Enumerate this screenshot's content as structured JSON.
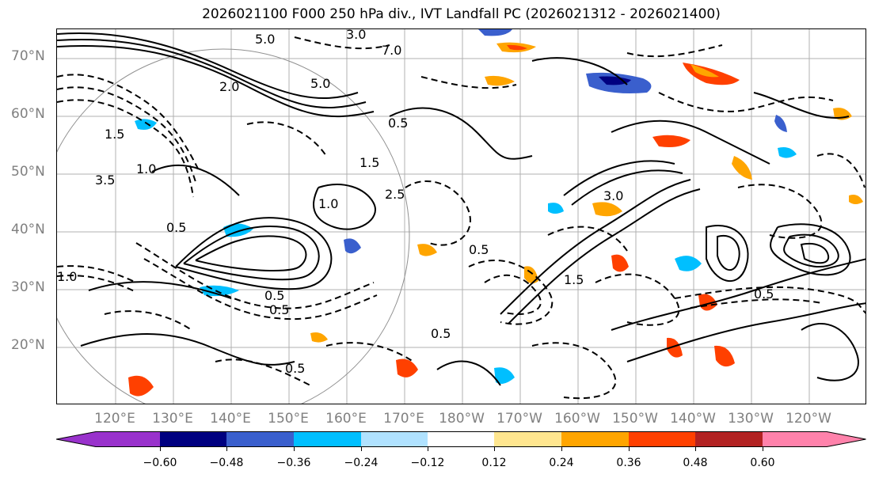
{
  "title": "2026021100 F000 250 hPa div., IVT Landfall PC (2026021312 - 2026021400)",
  "lat_labels": [
    "70°N",
    "60°N",
    "50°N",
    "40°N",
    "30°N",
    "20°N"
  ],
  "lon_labels": [
    "120°E",
    "130°E",
    "140°E",
    "150°E",
    "160°E",
    "170°E",
    "180°W",
    "170°W",
    "160°W",
    "150°W",
    "140°W",
    "130°W",
    "120°W"
  ],
  "contour_labels": [
    "3.0",
    "5.0",
    "7.0",
    "2.0",
    "5.0",
    "1.5",
    "1.0",
    "3.5",
    "0.5",
    "1.0",
    "0.5",
    "0.5",
    "1.0",
    "0.5",
    "0.5",
    "0.5",
    "1.5",
    "3.0",
    "1.5",
    "0.5",
    "2.5",
    "0.5"
  ],
  "colorbar": {
    "tick_labels": [
      "−0.60",
      "−0.48",
      "−0.36",
      "−0.24",
      "−0.12",
      "0.12",
      "0.24",
      "0.36",
      "0.48",
      "0.60"
    ],
    "colors": [
      "#9932cc",
      "#000080",
      "#3a5fcd",
      "#00bfff",
      "#b0e2ff",
      "#ffffff",
      "#ffe68f",
      "#ffa500",
      "#ff4000",
      "#b22222",
      "#ff82ab"
    ],
    "extend": "both"
  },
  "map": {
    "projection": "equirectangular",
    "grid": true,
    "contour_style": "solid positive, dashed negative, black",
    "shading_field": "divergence"
  }
}
